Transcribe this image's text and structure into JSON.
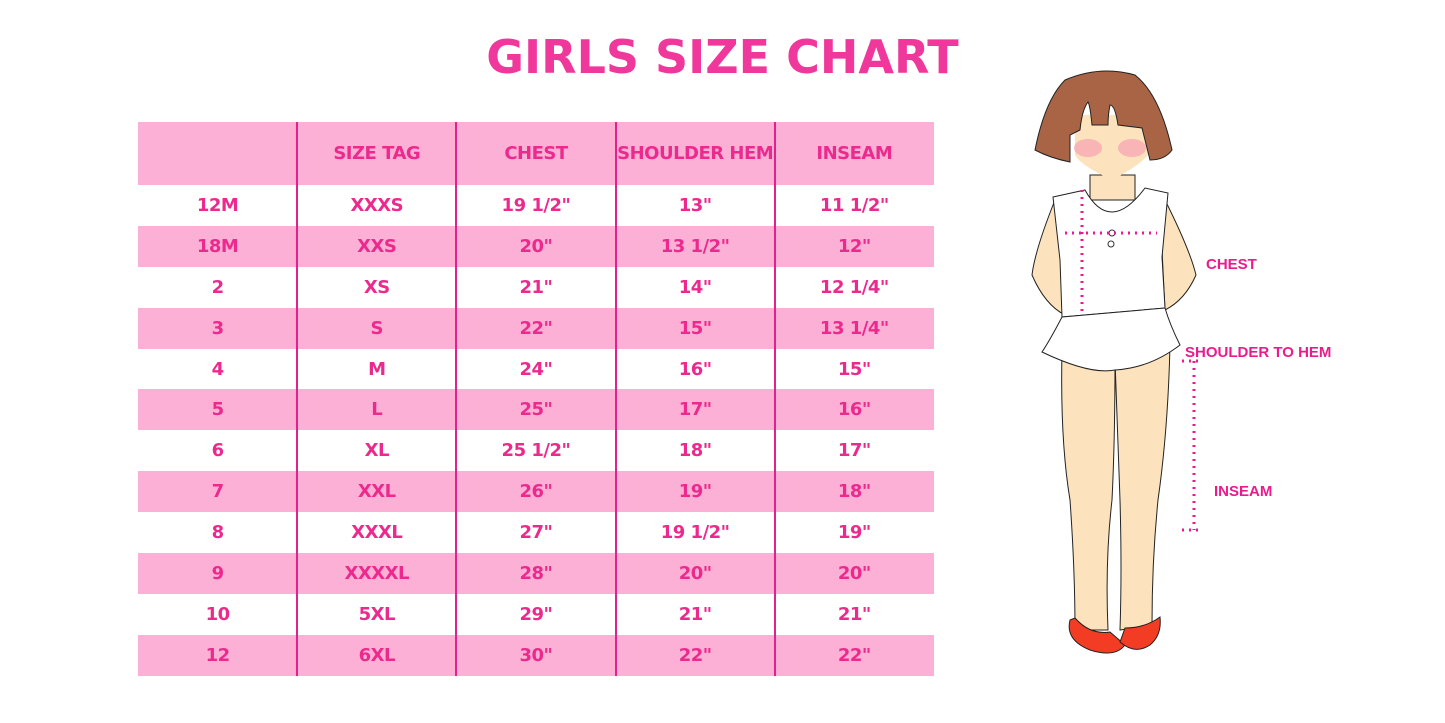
{
  "title": "GIRLS SIZE CHART",
  "table": {
    "headers": [
      "",
      "SIZE TAG",
      "CHEST",
      "SHOULDER HEM",
      "INSEAM"
    ],
    "rows": [
      [
        "12M",
        "XXXS",
        "19 1/2\"",
        "13\"",
        "11 1/2\""
      ],
      [
        "18M",
        "XXS",
        "20\"",
        "13 1/2\"",
        "12\""
      ],
      [
        "2",
        "XS",
        "21\"",
        "14\"",
        "12 1/4\""
      ],
      [
        "3",
        "S",
        "22\"",
        "15\"",
        "13 1/4\""
      ],
      [
        "4",
        "M",
        "24\"",
        "16\"",
        "15\""
      ],
      [
        "5",
        "L",
        "25\"",
        "17\"",
        "16\""
      ],
      [
        "6",
        "XL",
        "25 1/2\"",
        "18\"",
        "17\""
      ],
      [
        "7",
        "XXL",
        "26\"",
        "19\"",
        "18\""
      ],
      [
        "8",
        "XXXL",
        "27\"",
        "19 1/2\"",
        "19\""
      ],
      [
        "9",
        "XXXXL",
        "28\"",
        "20\"",
        "20\""
      ],
      [
        "10",
        "5XL",
        "29\"",
        "21\"",
        "21\""
      ],
      [
        "12",
        "6XL",
        "30\"",
        "22\"",
        "22\""
      ]
    ]
  },
  "figure": {
    "labels": {
      "chest": "CHEST",
      "shoulder_to_hem": "SHOULDER TO HEM",
      "inseam": "INSEAM"
    }
  },
  "colors": {
    "accent": "#ec2a8e",
    "row_pink": "#fdb0d6",
    "divider": "#e3218b"
  }
}
